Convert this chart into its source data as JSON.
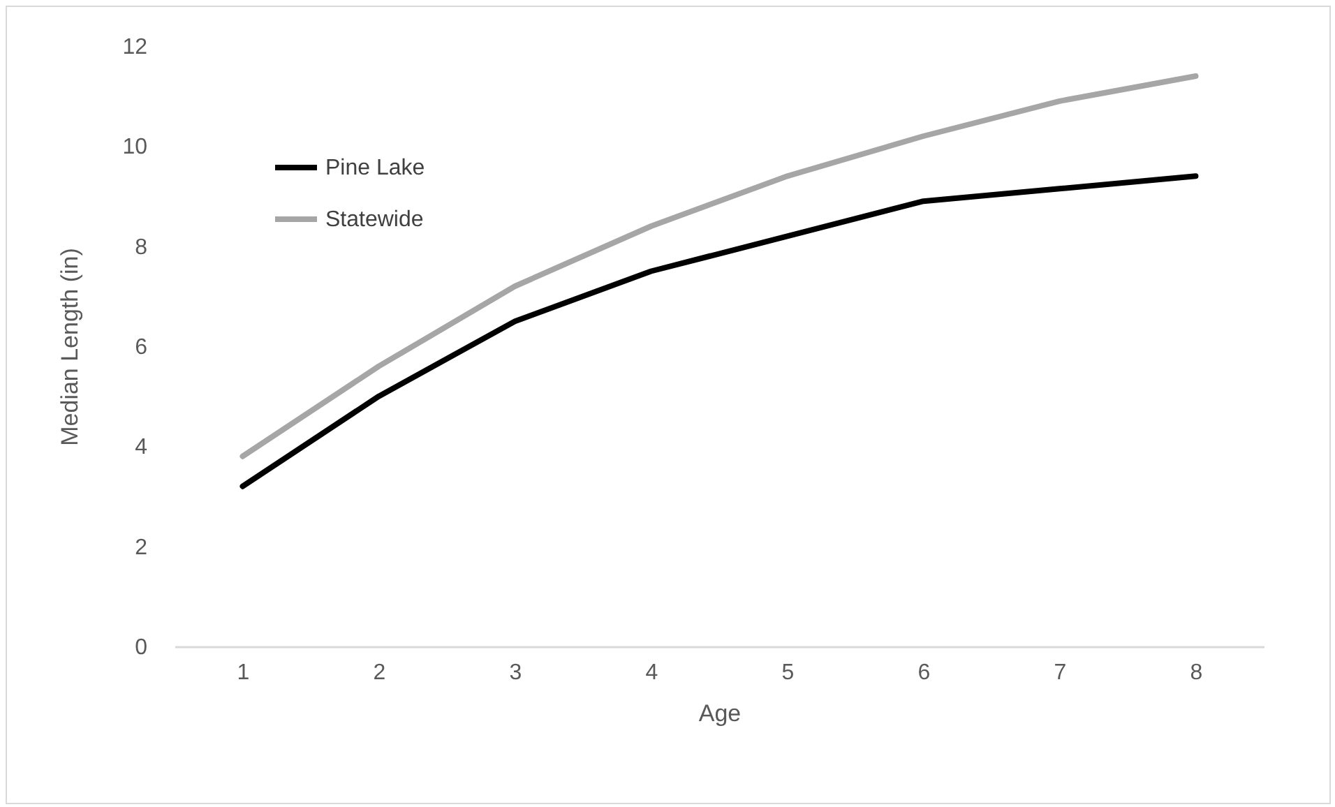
{
  "chart_data": {
    "type": "line",
    "xlabel": "Age",
    "ylabel": "Median Length (in)",
    "categories": [
      "1",
      "2",
      "3",
      "4",
      "5",
      "6",
      "7",
      "8"
    ],
    "series": [
      {
        "name": "Pine Lake",
        "color": "#000000",
        "values": [
          3.2,
          5.0,
          6.5,
          7.5,
          8.2,
          8.9,
          9.15,
          9.4
        ]
      },
      {
        "name": "Statewide",
        "color": "#a6a6a6",
        "values": [
          3.8,
          5.6,
          7.2,
          8.4,
          9.4,
          10.2,
          10.9,
          11.4
        ]
      }
    ],
    "ylim": [
      0,
      12
    ],
    "yticks": [
      0,
      2,
      4,
      6,
      8,
      10,
      12
    ],
    "grid": false,
    "legend": "top left",
    "marker": "none",
    "line_style": "solid"
  }
}
